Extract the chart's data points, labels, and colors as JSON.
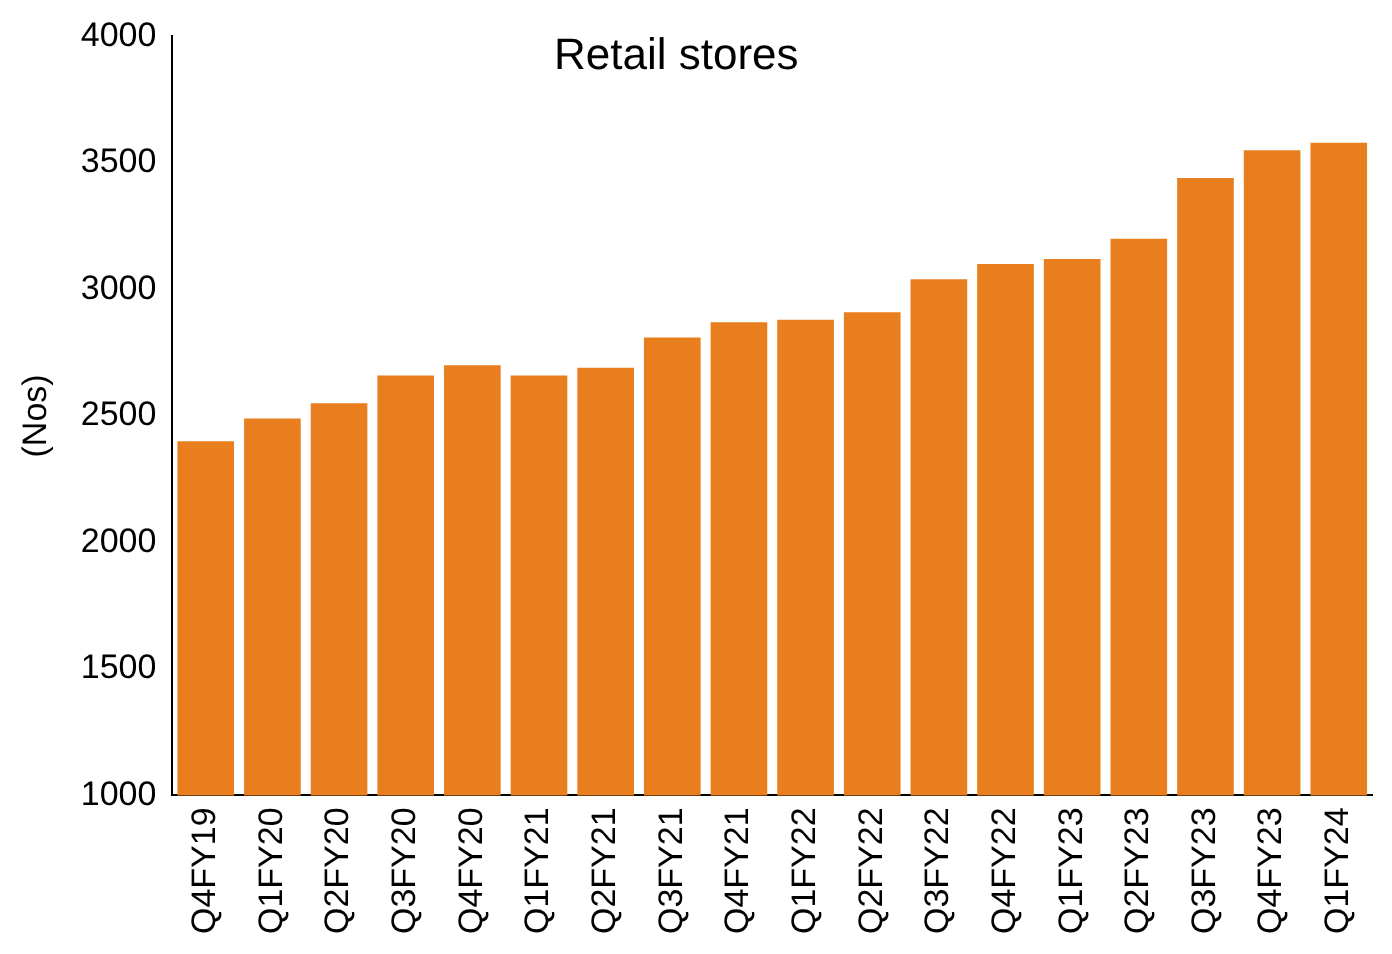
{
  "chart_data": {
    "type": "bar",
    "title": "Retail stores",
    "ylabel": "(Nos)",
    "categories": [
      "Q4FY19",
      "Q1FY20",
      "Q2FY20",
      "Q3FY20",
      "Q4FY20",
      "Q1FY21",
      "Q2FY21",
      "Q3FY21",
      "Q4FY21",
      "Q1FY22",
      "Q2FY22",
      "Q3FY22",
      "Q4FY22",
      "Q1FY23",
      "Q2FY23",
      "Q3FY23",
      "Q4FY23",
      "Q1FY24"
    ],
    "values": [
      2400,
      2490,
      2550,
      2660,
      2700,
      2660,
      2690,
      2810,
      2870,
      2880,
      2910,
      3040,
      3100,
      3120,
      3200,
      3440,
      3550,
      3580
    ],
    "color": "#e97e1e",
    "ylim": [
      1000,
      4000
    ],
    "yticks": [
      1000,
      1500,
      2000,
      2500,
      3000,
      3500,
      4000
    ],
    "grid": false,
    "legend": false
  }
}
